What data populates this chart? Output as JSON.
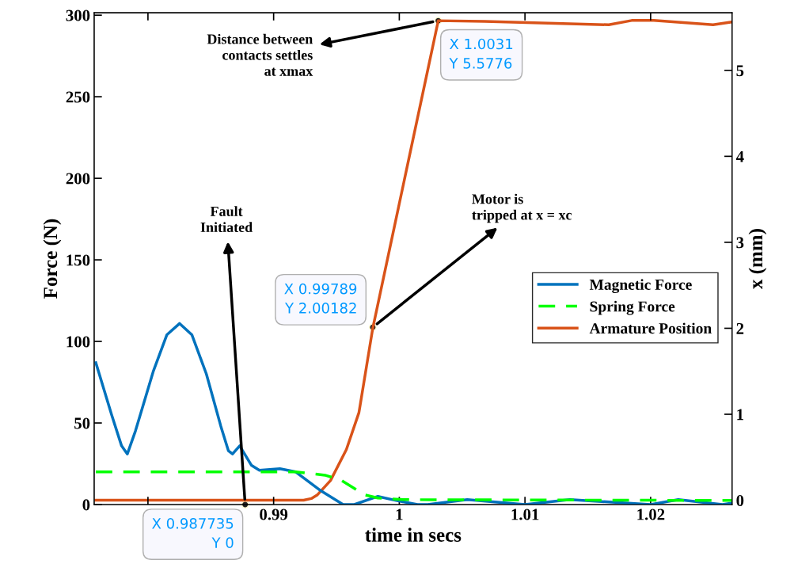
{
  "chart_data": {
    "type": "line",
    "xlabel": "time in secs",
    "ylabel": "Force (N)",
    "y2label": "x (mm)",
    "xlim": [
      0.97572,
      1.02648
    ],
    "xticks": [
      {
        "value": 0.98,
        "label": null
      },
      0.99,
      {
        "value": 1.0,
        "label": "1"
      },
      1.01,
      1.02
    ],
    "ylim": [
      0,
      301.5
    ],
    "yticks": [
      0,
      50,
      100,
      150,
      200,
      250,
      300
    ],
    "y2lim": [
      -0.05,
      5.67
    ],
    "y2ticks": [
      0,
      1,
      2,
      3,
      4,
      5
    ],
    "grid": false,
    "legend": "right",
    "line_style": "solid",
    "marker": "none",
    "series": [
      {
        "name": "Magnetic Force",
        "color": "#0072bd",
        "x": [
          0.97585,
          0.97711,
          0.9779,
          0.97836,
          0.979,
          0.98044,
          0.9815,
          0.98252,
          0.9835,
          0.98465,
          0.9858,
          0.9864,
          0.98673,
          0.9873,
          0.98824,
          0.98887,
          0.9905,
          0.99176,
          0.99365,
          0.99553,
          0.99642,
          0.9983,
          0.99975,
          1.00145,
          1.00226,
          1.00541,
          1.01,
          1.01358,
          1.02,
          1.0222,
          1.02572,
          1.02648
        ],
        "values": [
          87,
          55,
          36,
          31,
          45,
          82,
          104,
          111,
          104,
          80,
          48,
          33,
          31,
          36,
          24,
          21,
          22,
          20,
          9,
          0,
          0,
          5,
          2.5,
          0,
          0,
          3,
          0,
          3,
          0,
          3,
          0,
          1
        ]
      },
      {
        "name": "Spring Force",
        "color": "#00ff00",
        "line_style": "dashed",
        "x": [
          0.97585,
          0.99176,
          0.99409,
          0.99535,
          0.99723,
          0.9983,
          1.00038,
          1.02648
        ],
        "values": [
          20,
          20,
          18,
          15,
          6,
          4,
          3,
          2.5
        ]
      },
      {
        "name": "Armature Position",
        "color": "#d95319",
        "x": [
          0.97585,
          0.987735,
          0.99239,
          0.993,
          0.99346,
          0.99453,
          0.99579,
          0.99679,
          0.99789,
          1.0031,
          1.00679,
          1.01667,
          1.01849,
          1.02025,
          1.02497,
          1.02635
        ],
        "values": [
          0,
          0,
          0,
          0.02,
          0.06,
          0.23,
          0.59,
          1.02,
          2.00182,
          5.5776,
          5.57,
          5.53,
          5.58,
          5.58,
          5.53,
          5.56
        ],
        "axis": "y2"
      }
    ],
    "annotations": [
      {
        "text": "X 0.987735\nY 0",
        "x": 0.987735,
        "y": 0
      },
      {
        "text": "X 0.99789\nY 2.00182",
        "x": 0.99789,
        "y": 108.7
      },
      {
        "text": "X 1.0031\nY 5.5776",
        "x": 1.0031,
        "y": 296.6
      },
      "Fault\nInitiated",
      {
        "text": "Motor is\ntripped at x = xc",
        "x": 0.99789,
        "y": 108.7
      },
      {
        "text": "Distance between\ncontacts settles\nat xmax",
        "x": 1.0031,
        "y": 296.6
      }
    ]
  }
}
